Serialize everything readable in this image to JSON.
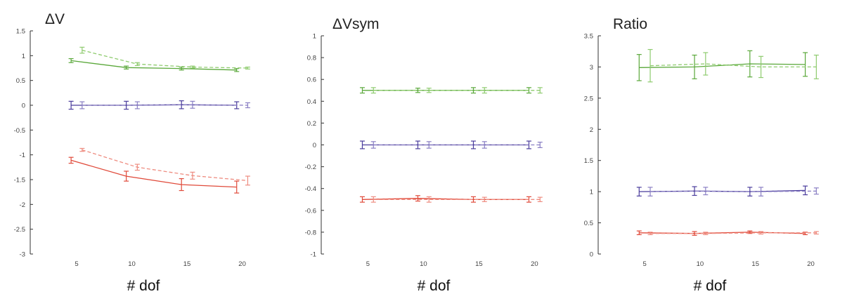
{
  "chart_data": [
    {
      "type": "line",
      "title": "ΔV",
      "xlabel": "# dof",
      "ylabel": "",
      "xlim": [
        0.8,
        22
      ],
      "ylim": [
        -3,
        1.5
      ],
      "xticks": [
        5,
        10,
        15,
        20
      ],
      "xtick_labels": [
        "5",
        "10",
        "15",
        "20"
      ],
      "yticks": [
        -3,
        -2.5,
        -2,
        -1.5,
        -1,
        -0.5,
        0,
        0.5,
        1,
        1.5
      ],
      "ytick_labels": [
        "-3",
        "-2.5",
        "-2",
        "-1.5",
        "-1",
        "-0.5",
        "0",
        "0.5",
        "1",
        "1.5"
      ],
      "grid": false,
      "series": [
        {
          "color": "#5aa83a",
          "dashed": false,
          "x": [
            4.5,
            9.5,
            14.5,
            19.5
          ],
          "y": [
            0.9,
            0.76,
            0.74,
            0.71
          ],
          "err": [
            0.04,
            0.03,
            0.03,
            0.03
          ]
        },
        {
          "color": "#8ecb6e",
          "dashed": true,
          "x": [
            5.5,
            10.5,
            15.5,
            20.5
          ],
          "y": [
            1.11,
            0.83,
            0.77,
            0.75
          ],
          "err": [
            0.06,
            0.03,
            0.02,
            0.02
          ]
        },
        {
          "color": "#4a3c9c",
          "dashed": false,
          "x": [
            4.5,
            9.5,
            14.5,
            19.5
          ],
          "y": [
            0.0,
            0.0,
            0.01,
            0.0
          ],
          "err": [
            0.08,
            0.08,
            0.08,
            0.07
          ]
        },
        {
          "color": "#8a7fc4",
          "dashed": true,
          "x": [
            5.5,
            10.5,
            15.5,
            20.5
          ],
          "y": [
            0.0,
            0.0,
            0.01,
            0.0
          ],
          "err": [
            0.07,
            0.07,
            0.07,
            0.05
          ]
        },
        {
          "color": "#e04a3a",
          "dashed": false,
          "x": [
            4.5,
            9.5,
            14.5,
            19.5
          ],
          "y": [
            -1.11,
            -1.43,
            -1.6,
            -1.65
          ],
          "err": [
            0.06,
            0.1,
            0.12,
            0.12
          ]
        },
        {
          "color": "#ee8c80",
          "dashed": true,
          "x": [
            5.5,
            10.5,
            15.5,
            20.5
          ],
          "y": [
            -0.9,
            -1.25,
            -1.42,
            -1.52
          ],
          "err": [
            0.03,
            0.06,
            0.07,
            0.09
          ]
        }
      ]
    },
    {
      "type": "line",
      "title": "ΔVsym",
      "xlabel": "# dof",
      "ylabel": "",
      "xlim": [
        0.8,
        22
      ],
      "ylim": [
        -1,
        1
      ],
      "xticks": [
        5,
        10,
        15,
        20
      ],
      "xtick_labels": [
        "5",
        "10",
        "15",
        "20"
      ],
      "yticks": [
        -1,
        -0.8,
        -0.6,
        -0.4,
        -0.2,
        0,
        0.2,
        0.4,
        0.6,
        0.8,
        1
      ],
      "ytick_labels": [
        "-1",
        "-0.8",
        "-0.6",
        "-0.4",
        "-0.2",
        "0",
        "0.2",
        "0.4",
        "0.6",
        "0.8",
        "1"
      ],
      "grid": false,
      "series": [
        {
          "color": "#5aa83a",
          "dashed": false,
          "x": [
            4.5,
            9.5,
            14.5,
            19.5
          ],
          "y": [
            0.5,
            0.5,
            0.5,
            0.5
          ],
          "err": [
            0.025,
            0.02,
            0.025,
            0.025
          ]
        },
        {
          "color": "#8ecb6e",
          "dashed": true,
          "x": [
            5.5,
            10.5,
            15.5,
            20.5
          ],
          "y": [
            0.5,
            0.5,
            0.5,
            0.5
          ],
          "err": [
            0.025,
            0.02,
            0.025,
            0.025
          ]
        },
        {
          "color": "#4a3c9c",
          "dashed": false,
          "x": [
            4.5,
            9.5,
            14.5,
            19.5
          ],
          "y": [
            0.0,
            0.0,
            0.0,
            0.0
          ],
          "err": [
            0.035,
            0.035,
            0.035,
            0.035
          ]
        },
        {
          "color": "#8a7fc4",
          "dashed": true,
          "x": [
            5.5,
            10.5,
            15.5,
            20.5
          ],
          "y": [
            0.0,
            0.0,
            0.0,
            0.0
          ],
          "err": [
            0.03,
            0.03,
            0.03,
            0.025
          ]
        },
        {
          "color": "#e04a3a",
          "dashed": false,
          "x": [
            4.5,
            9.5,
            14.5,
            19.5
          ],
          "y": [
            -0.5,
            -0.49,
            -0.5,
            -0.5
          ],
          "err": [
            0.025,
            0.025,
            0.025,
            0.025
          ]
        },
        {
          "color": "#ee8c80",
          "dashed": true,
          "x": [
            5.5,
            10.5,
            15.5,
            20.5
          ],
          "y": [
            -0.5,
            -0.5,
            -0.5,
            -0.5
          ],
          "err": [
            0.025,
            0.025,
            0.02,
            0.02
          ]
        }
      ]
    },
    {
      "type": "line",
      "title": "Ratio",
      "xlabel": "# dof",
      "ylabel": "",
      "xlim": [
        0.8,
        22
      ],
      "ylim": [
        0,
        3.5
      ],
      "xticks": [
        5,
        10,
        15,
        20
      ],
      "xtick_labels": [
        "5",
        "10",
        "15",
        "20"
      ],
      "yticks": [
        0,
        0.5,
        1,
        1.5,
        2,
        2.5,
        3,
        3.5
      ],
      "ytick_labels": [
        "0",
        "0.5",
        "1",
        "1.5",
        "2",
        "2.5",
        "3",
        "3.5"
      ],
      "grid": false,
      "series": [
        {
          "color": "#5aa83a",
          "dashed": false,
          "x": [
            4.5,
            9.5,
            14.5,
            19.5
          ],
          "y": [
            2.99,
            3.0,
            3.05,
            3.04
          ],
          "err": [
            0.21,
            0.19,
            0.21,
            0.19
          ]
        },
        {
          "color": "#8ecb6e",
          "dashed": true,
          "x": [
            5.5,
            10.5,
            15.5,
            20.5
          ],
          "y": [
            3.02,
            3.05,
            3.0,
            3.0
          ],
          "err": [
            0.26,
            0.18,
            0.17,
            0.19
          ]
        },
        {
          "color": "#4a3c9c",
          "dashed": false,
          "x": [
            4.5,
            9.5,
            14.5,
            19.5
          ],
          "y": [
            1.0,
            1.01,
            1.0,
            1.02
          ],
          "err": [
            0.07,
            0.07,
            0.07,
            0.07
          ]
        },
        {
          "color": "#8a7fc4",
          "dashed": true,
          "x": [
            5.5,
            10.5,
            15.5,
            20.5
          ],
          "y": [
            1.0,
            1.01,
            1.0,
            1.01
          ],
          "err": [
            0.07,
            0.06,
            0.07,
            0.05
          ]
        },
        {
          "color": "#e04a3a",
          "dashed": false,
          "x": [
            4.5,
            9.5,
            14.5,
            19.5
          ],
          "y": [
            0.34,
            0.33,
            0.35,
            0.33
          ],
          "err": [
            0.03,
            0.03,
            0.02,
            0.02
          ]
        },
        {
          "color": "#ee8c80",
          "dashed": true,
          "x": [
            5.5,
            10.5,
            15.5,
            20.5
          ],
          "y": [
            0.33,
            0.33,
            0.34,
            0.34
          ],
          "err": [
            0.02,
            0.02,
            0.02,
            0.02
          ]
        }
      ]
    }
  ]
}
